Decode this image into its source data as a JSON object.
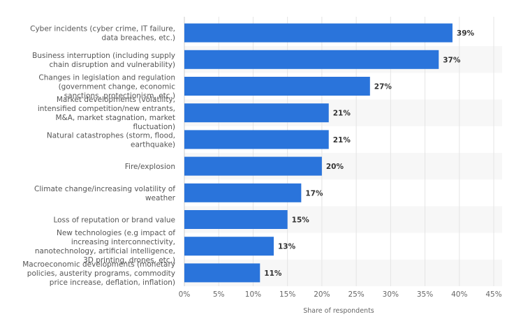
{
  "chart_data": {
    "type": "bar",
    "orientation": "horizontal",
    "categories": [
      [
        "Cyber incidents (cyber crime, IT failure,",
        "data breaches, etc.)"
      ],
      [
        "Business interruption (including supply",
        "chain disruption and vulnerability)"
      ],
      [
        "Changes in legislation and regulation",
        "(government change, economic",
        "sanctions, protectionism, etc.)"
      ],
      [
        "Market developments (volatility,",
        "intensified competition/new entrants,",
        "M&A, market stagnation, market",
        "fluctuation)"
      ],
      [
        "Natural catastrophes (storm, flood,",
        "earthquake)"
      ],
      [
        "Fire/explosion"
      ],
      [
        "Climate change/increasing volatility of",
        "weather"
      ],
      [
        "Loss of reputation or brand value"
      ],
      [
        "New technologies (e.g impact of",
        "increasing interconnectivity,",
        "nanotechnology, artificial intelligence,",
        "3D printing, drones, etc.)"
      ],
      [
        "Macroeconomic developments (monetary",
        "policies, austerity programs, commodity",
        "price increase, deflation, inflation)"
      ]
    ],
    "values": [
      39,
      37,
      27,
      21,
      21,
      20,
      17,
      15,
      13,
      11
    ],
    "value_labels": [
      "39%",
      "37%",
      "27%",
      "21%",
      "21%",
      "20%",
      "17%",
      "15%",
      "13%",
      "11%"
    ],
    "xlabel": "Share of respondents",
    "xlim": [
      0,
      45
    ],
    "ticks": [
      0,
      5,
      10,
      15,
      20,
      25,
      30,
      35,
      40,
      45
    ],
    "tick_labels": [
      "0%",
      "5%",
      "10%",
      "15%",
      "20%",
      "25%",
      "30%",
      "35%",
      "40%",
      "45%"
    ],
    "grid": true,
    "bar_color": "#2a74db",
    "band_color": "#f7f7f7"
  }
}
